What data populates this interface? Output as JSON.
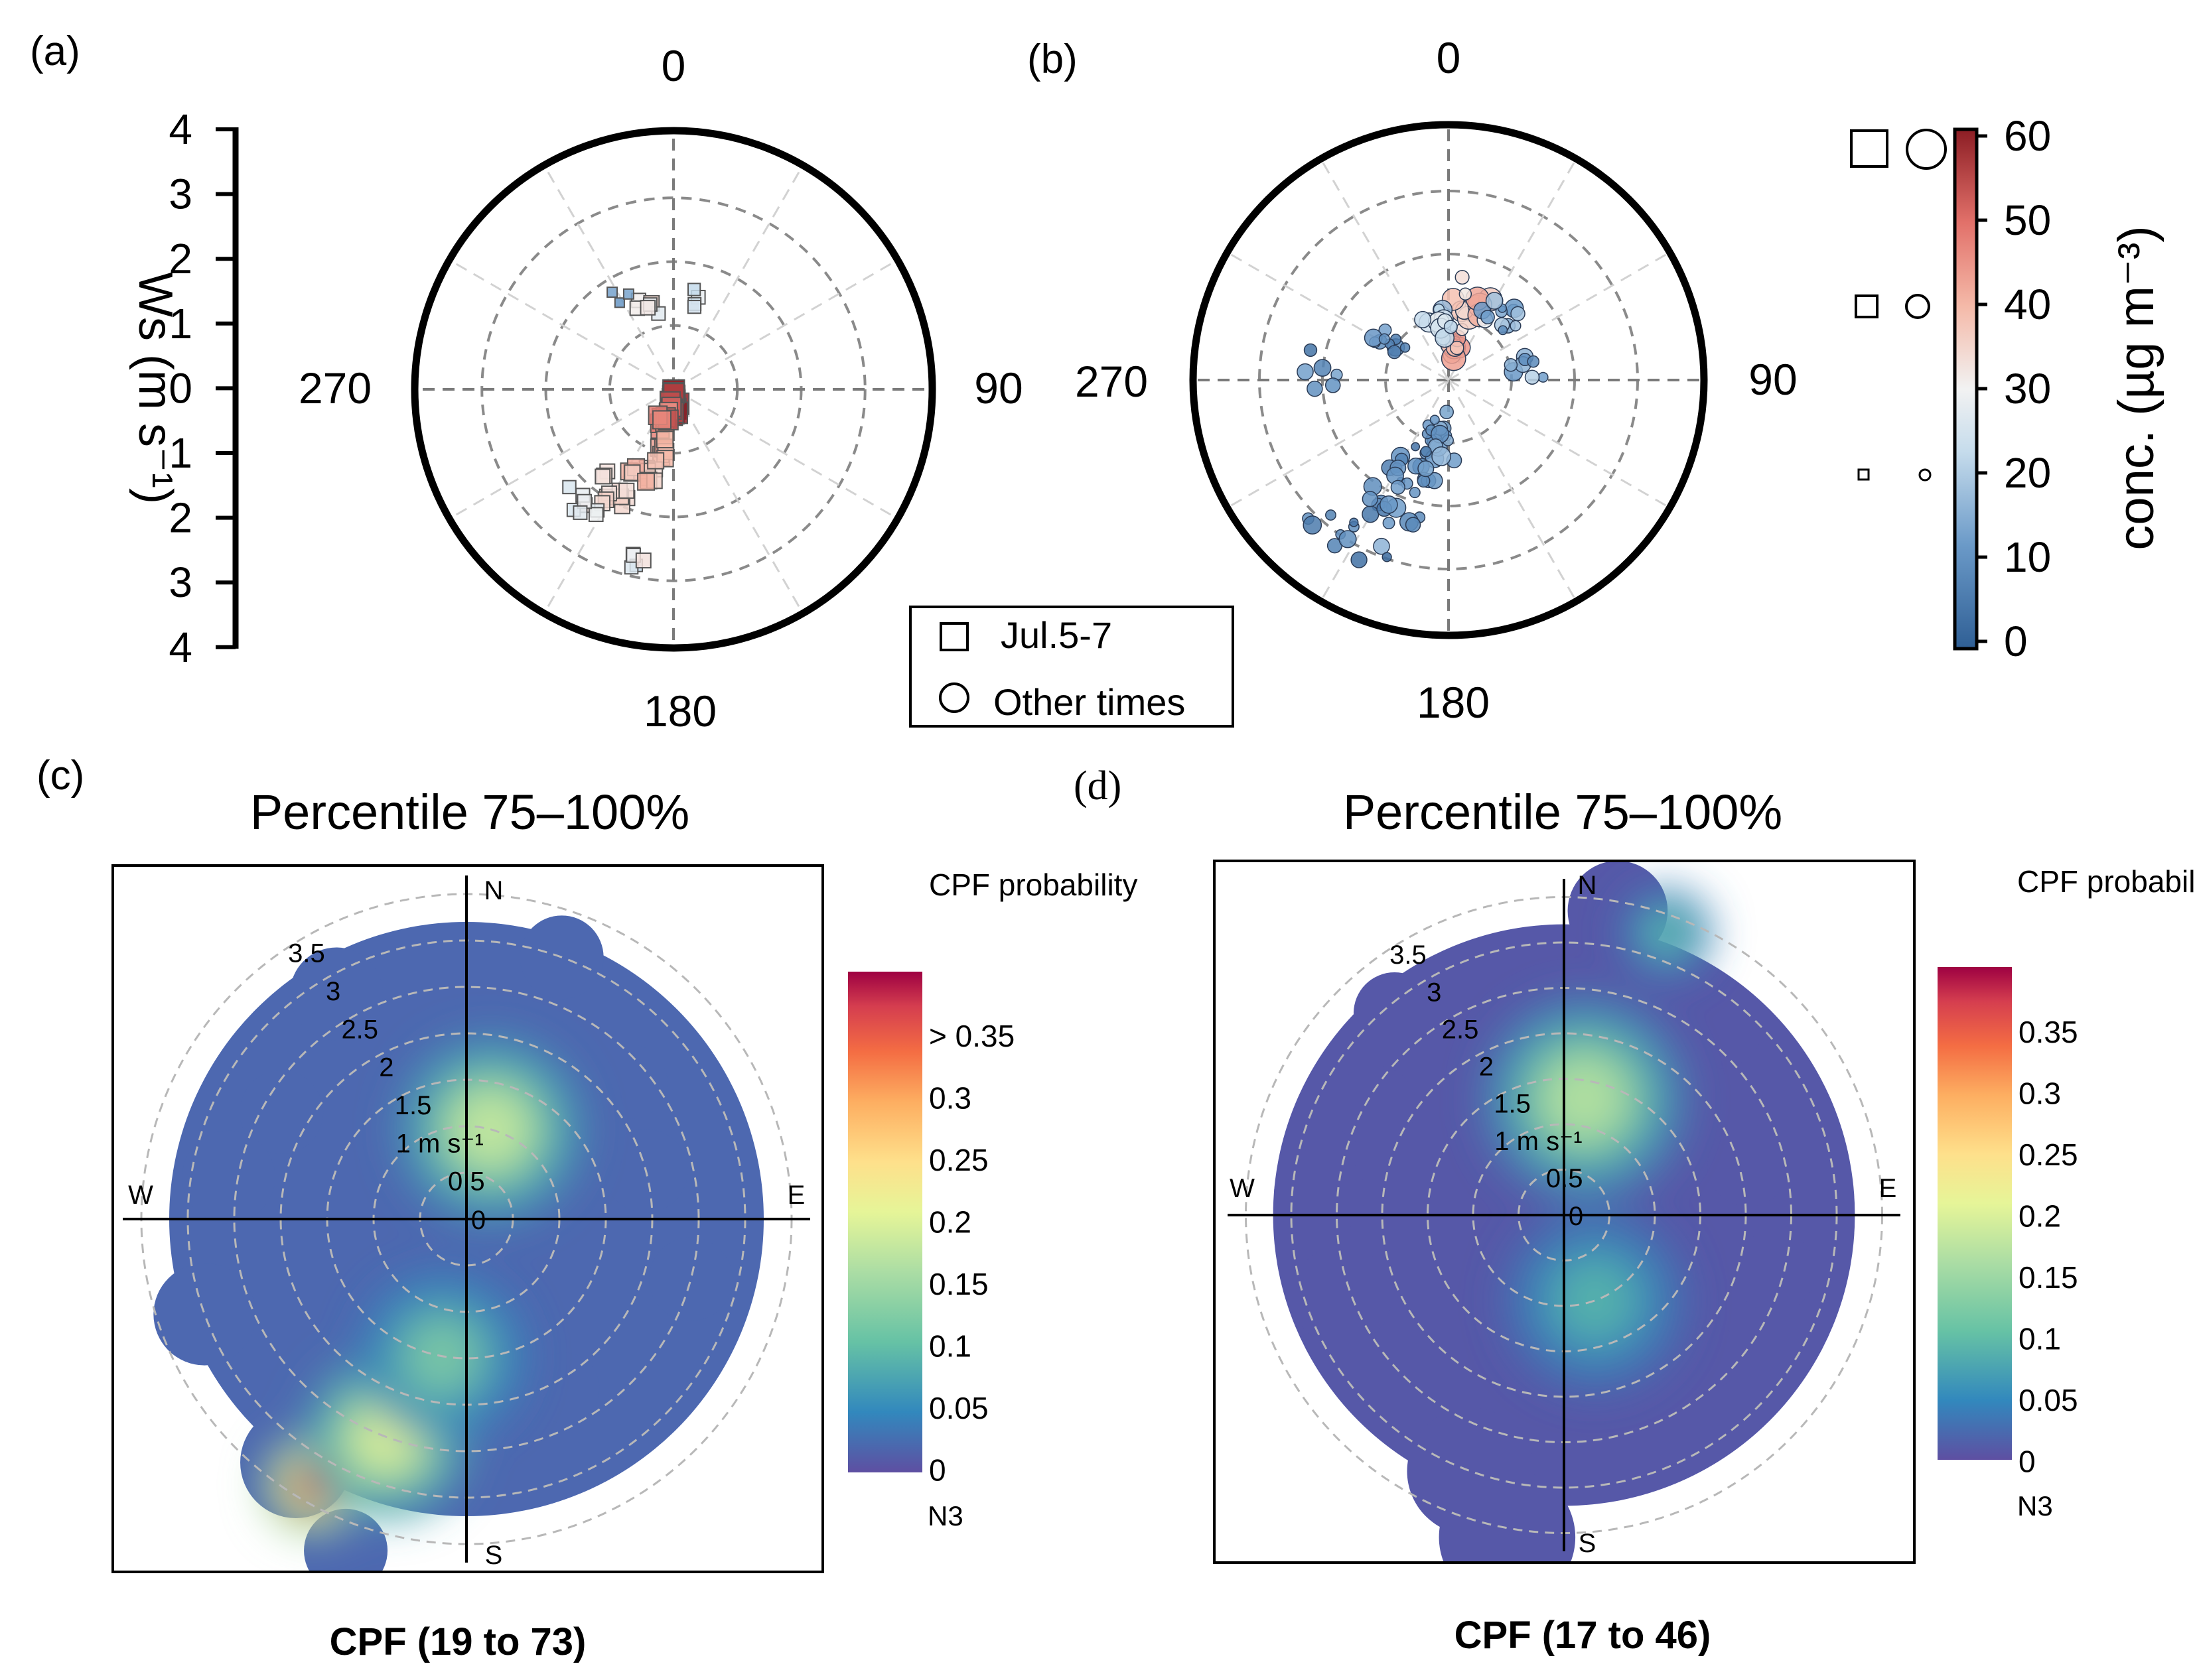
{
  "colors": {
    "conc_low": "#3d6ea8",
    "conc_mid": "#f2f2f2",
    "conc_high": "#8c1d24",
    "cpf_scale": [
      "#5e4fa2",
      "#3288bd",
      "#66c2a5",
      "#abdda4",
      "#e6f598",
      "#fee08b",
      "#fdae61",
      "#f46d43",
      "#d53e4f",
      "#9e0142"
    ]
  },
  "chart_data": [
    {
      "type": "scatter",
      "panel_label": "(a)",
      "direction_labels": {
        "north": "0",
        "east": "90",
        "south": "180",
        "west": "270"
      },
      "ws_axis": {
        "label": "Ws (m s⁻¹)",
        "ticks": [
          "4",
          "3",
          "2",
          "1",
          "0",
          "1",
          "2",
          "3",
          "4"
        ],
        "range": [
          0,
          4
        ]
      },
      "marker": "square",
      "points": [
        {
          "dir": 175,
          "ws": 0.15,
          "conc": 58,
          "n": 14
        },
        {
          "dir": 185,
          "ws": 0.3,
          "conc": 55,
          "n": 12
        },
        {
          "dir": 200,
          "ws": 0.55,
          "conc": 48,
          "n": 10
        },
        {
          "dir": 190,
          "ws": 0.9,
          "conc": 42,
          "n": 8
        },
        {
          "dir": 200,
          "ws": 1.4,
          "conc": 38,
          "n": 14
        },
        {
          "dir": 210,
          "ws": 1.8,
          "conc": 33,
          "n": 12
        },
        {
          "dir": 220,
          "ws": 2.3,
          "conc": 30,
          "n": 8
        },
        {
          "dir": 195,
          "ws": 2.7,
          "conc": 28,
          "n": 5
        },
        {
          "dir": 345,
          "ws": 1.3,
          "conc": 30,
          "n": 6
        },
        {
          "dir": 10,
          "ws": 1.5,
          "conc": 26,
          "n": 4
        },
        {
          "dir": 330,
          "ws": 1.8,
          "conc": 12,
          "n": 3
        }
      ]
    },
    {
      "type": "scatter",
      "panel_label": "(b)",
      "direction_labels": {
        "north": "0",
        "east": "90",
        "south": "180",
        "west": "270"
      },
      "marker": "circle",
      "points": [
        {
          "dir": 10,
          "ws": 0.6,
          "conc": 42,
          "n": 10
        },
        {
          "dir": 20,
          "ws": 1.2,
          "conc": 35,
          "n": 14
        },
        {
          "dir": 350,
          "ws": 0.9,
          "conc": 22,
          "n": 12
        },
        {
          "dir": 40,
          "ws": 1.4,
          "conc": 15,
          "n": 12
        },
        {
          "dir": 300,
          "ws": 1.2,
          "conc": 10,
          "n": 10
        },
        {
          "dir": 190,
          "ws": 0.9,
          "conc": 12,
          "n": 18
        },
        {
          "dir": 200,
          "ws": 1.6,
          "conc": 8,
          "n": 18
        },
        {
          "dir": 205,
          "ws": 2.3,
          "conc": 10,
          "n": 14
        },
        {
          "dir": 215,
          "ws": 3.0,
          "conc": 9,
          "n": 10
        },
        {
          "dir": 80,
          "ws": 1.3,
          "conc": 14,
          "n": 8
        },
        {
          "dir": 270,
          "ws": 2.0,
          "conc": 8,
          "n": 6
        }
      ],
      "legend": {
        "items": [
          "Jul.5-7",
          "Other times"
        ]
      },
      "colorbar": {
        "label": "conc. (µg m⁻³)",
        "ticks": [
          "60",
          "50",
          "40",
          "30",
          "20",
          "10",
          "0"
        ],
        "range": [
          0,
          60
        ]
      }
    },
    {
      "type": "heatmap",
      "panel_label": "(c)",
      "title": "Percentile 75–100%",
      "caption": "CPF (19 to 73)",
      "compass": {
        "n": "N",
        "e": "E",
        "s": "S",
        "w": "W"
      },
      "ring_labels": [
        "0",
        "0.5",
        "1 m s⁻¹",
        "1.5",
        "2",
        "2.5",
        "3",
        "3.5"
      ],
      "colorbar": {
        "title": "CPF probability",
        "ticks": [
          "> 0.35",
          "0.3",
          "0.25",
          "0.2",
          "0.15",
          "0.1",
          "0.05",
          "0"
        ],
        "range": [
          0,
          0.38
        ],
        "footer": "N3"
      },
      "blobs": [
        {
          "dir": 210,
          "ws": 3.3,
          "cpf": 0.37,
          "spread": 0.55
        },
        {
          "dir": 200,
          "ws": 2.5,
          "cpf": 0.2,
          "spread": 0.9
        },
        {
          "dir": 15,
          "ws": 1.0,
          "cpf": 0.18,
          "spread": 1.0
        },
        {
          "dir": 190,
          "ws": 1.5,
          "cpf": 0.12,
          "spread": 0.9
        }
      ]
    },
    {
      "type": "heatmap",
      "panel_label": "(d)",
      "title": "Percentile 75–100%",
      "caption": "CPF (17 to 46)",
      "compass": {
        "n": "N",
        "e": "E",
        "s": "S",
        "w": "W"
      },
      "ring_labels": [
        "0",
        "0.5",
        "1 m s⁻¹",
        "1.5",
        "2",
        "2.5",
        "3",
        "3.5"
      ],
      "colorbar": {
        "title": "CPF probability",
        "ticks": [
          "0.35",
          "0.3",
          "0.25",
          "0.2",
          "0.15",
          "0.1",
          "0.05",
          "0"
        ],
        "range": [
          0,
          0.39
        ],
        "footer": "N3"
      },
      "blobs": [
        {
          "dir": 10,
          "ws": 1.3,
          "cpf": 0.17,
          "spread": 1.1
        },
        {
          "dir": 20,
          "ws": 3.3,
          "cpf": 0.1,
          "spread": 0.5
        },
        {
          "dir": 160,
          "ws": 1.0,
          "cpf": 0.09,
          "spread": 1.0
        }
      ]
    }
  ]
}
